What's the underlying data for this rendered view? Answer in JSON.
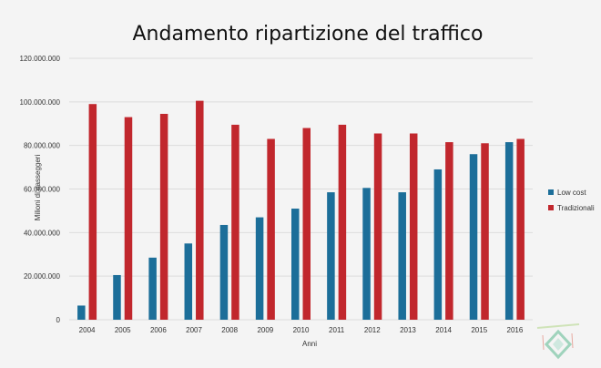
{
  "chart_data": {
    "type": "bar",
    "title": "Andamento ripartizione del traffico",
    "xlabel": "Anni",
    "ylabel": "Milioni di passeggeri",
    "categories": [
      "2004",
      "2005",
      "2006",
      "2007",
      "2008",
      "2009",
      "2010",
      "2011",
      "2012",
      "2013",
      "2014",
      "2015",
      "2016"
    ],
    "series": [
      {
        "name": "Low cost",
        "color": "#1c6e99",
        "values": [
          6500000,
          20500000,
          28500000,
          35000000,
          43500000,
          47000000,
          51000000,
          58500000,
          60500000,
          58500000,
          69000000,
          76000000,
          81500000
        ]
      },
      {
        "name": "Tradizionali",
        "color": "#c1272d",
        "values": [
          99000000,
          93000000,
          94500000,
          100500000,
          89500000,
          83000000,
          88000000,
          89500000,
          85500000,
          85500000,
          81500000,
          81000000,
          83000000
        ]
      }
    ],
    "ylim": [
      0,
      120000000
    ],
    "yticks": [
      "0",
      "20.000.000",
      "40.000.000",
      "60.000.000",
      "80.000.000",
      "100.000.000",
      "120.000.000"
    ],
    "grid": true,
    "legend_position": "right"
  }
}
